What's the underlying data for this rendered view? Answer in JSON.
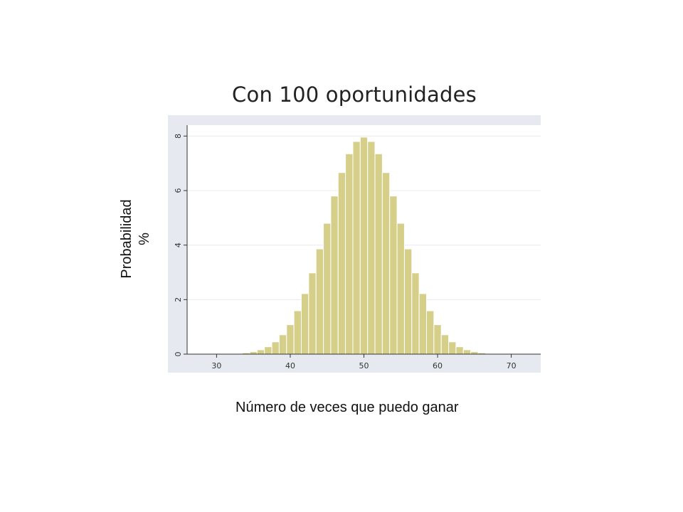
{
  "chart_data": {
    "type": "bar",
    "title": "Con 100 oportunidades",
    "xlabel": "Número de veces que puedo ganar",
    "ylabel": "Probabilidad",
    "ylabel_unit": "%",
    "xlim": [
      26,
      74
    ],
    "ylim": [
      0,
      8.4
    ],
    "xticks": [
      "30",
      "40",
      "50",
      "60",
      "70"
    ],
    "yticks": [
      "0",
      "2",
      "4",
      "6",
      "8"
    ],
    "grid": true,
    "bar_color": "#d6cf8a",
    "bar_edge_color": "#ffffff",
    "plot_background": "#ffffff",
    "frame_background": "#e6eaf0",
    "x": [
      28,
      29,
      30,
      31,
      32,
      33,
      34,
      35,
      36,
      37,
      38,
      39,
      40,
      41,
      42,
      43,
      44,
      45,
      46,
      47,
      48,
      49,
      50,
      51,
      52,
      53,
      54,
      55,
      56,
      57,
      58,
      59,
      60,
      61,
      62,
      63,
      64,
      65,
      66,
      67,
      68,
      69,
      70,
      71,
      72
    ],
    "values": [
      0.0,
      0.0,
      0.0,
      0.0,
      0.01,
      0.02,
      0.05,
      0.09,
      0.16,
      0.27,
      0.45,
      0.71,
      1.08,
      1.59,
      2.22,
      2.98,
      3.86,
      4.8,
      5.8,
      6.66,
      7.35,
      7.8,
      7.96,
      7.8,
      7.35,
      6.66,
      5.8,
      4.8,
      3.86,
      2.98,
      2.22,
      1.59,
      1.08,
      0.71,
      0.45,
      0.27,
      0.16,
      0.09,
      0.05,
      0.02,
      0.01,
      0.0,
      0.0,
      0.0,
      0.0
    ]
  }
}
